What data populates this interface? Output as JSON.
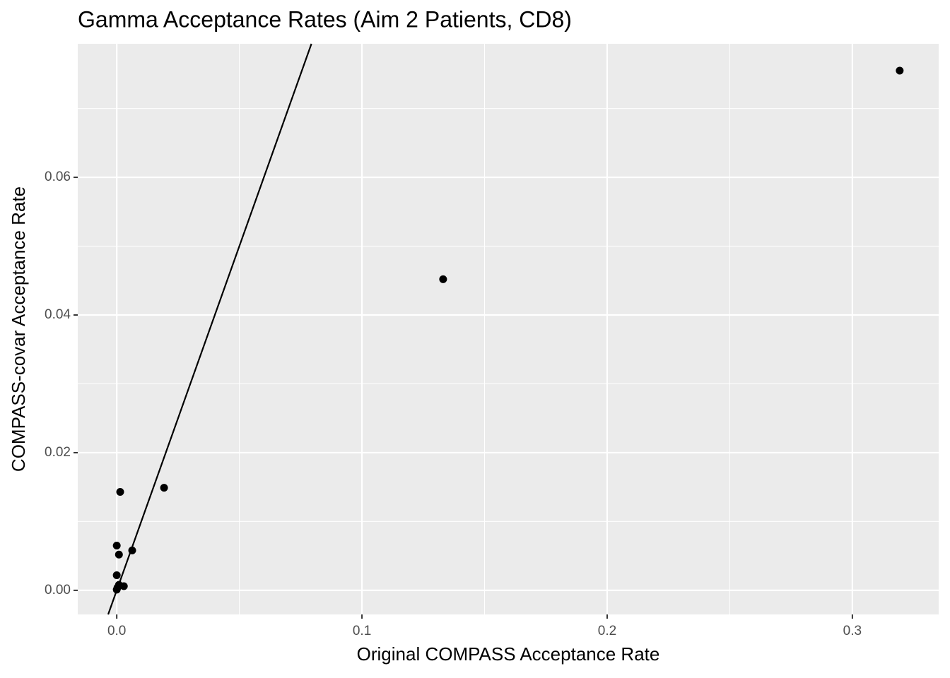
{
  "chart_data": {
    "type": "scatter",
    "title": "Gamma Acceptance Rates (Aim 2 Patients, CD8)",
    "x_label": "Original COMPASS Acceptance Rate",
    "y_label": "COMPASS-covar Acceptance Rate",
    "x": [
      0.3193,
      0.1331,
      0.0193,
      0.0014,
      0.0,
      0.0009,
      0.0063,
      0.0,
      0.0029,
      0.0009,
      0.0,
      0.0003
    ],
    "y": [
      0.0755,
      0.0452,
      0.0149,
      0.0143,
      0.0065,
      0.0052,
      0.0058,
      0.0022,
      0.0006,
      0.0008,
      0.0001,
      0.0004
    ],
    "color": "#000000",
    "xlim": [
      -0.0159,
      0.3352
    ],
    "ylim": [
      -0.0035,
      0.0794
    ],
    "xticks": [
      {
        "value": 0,
        "label": "0.0"
      },
      0.1,
      0.2,
      0.3
    ],
    "yticks": [
      {
        "value": 0,
        "label": "0.00"
      },
      {
        "value": 0.02,
        "label": "0.02"
      },
      {
        "value": 0.04,
        "label": "0.04"
      },
      {
        "value": 0.06,
        "label": "0.06"
      }
    ],
    "minor_xticks": [
      0.05,
      0.15,
      0.25
    ],
    "minor_yticks": [
      0.01,
      0.03,
      0.05,
      0.07
    ],
    "reference_line": {
      "slope": 1,
      "intercept": 0
    },
    "grid": true
  }
}
